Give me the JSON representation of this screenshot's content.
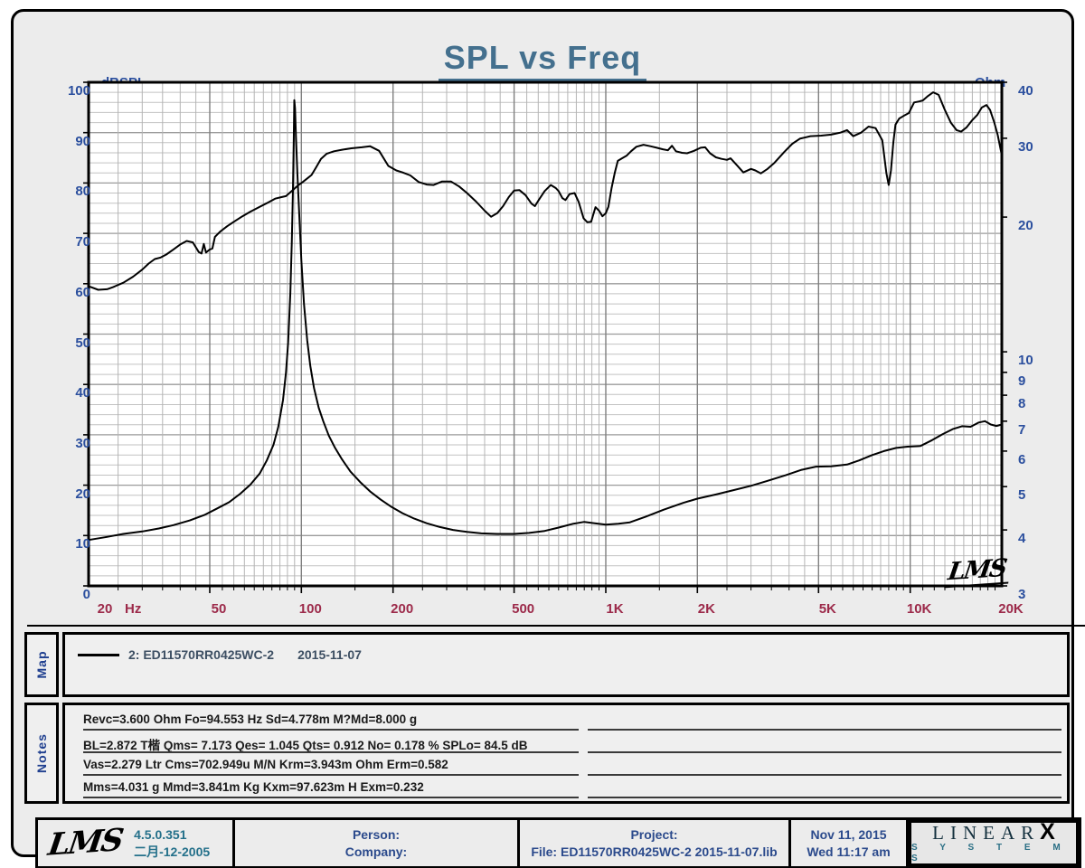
{
  "title": "SPL vs Freq",
  "chart": {
    "left_axis_label": "dBSPL",
    "right_axis_label": "Ohm",
    "x_unit_label": "Hz",
    "left_ticks": [
      100,
      90,
      80,
      70,
      60,
      50,
      40,
      30,
      20,
      10,
      0
    ],
    "right_ticks": [
      40,
      30,
      20,
      10,
      9,
      8,
      7,
      6,
      5,
      4,
      3
    ],
    "x_ticks": [
      {
        "f": 20,
        "label": "20"
      },
      {
        "f": 50,
        "label": "50"
      },
      {
        "f": 100,
        "label": "100"
      },
      {
        "f": 200,
        "label": "200"
      },
      {
        "f": 500,
        "label": "500"
      },
      {
        "f": 1000,
        "label": "1K"
      },
      {
        "f": 2000,
        "label": "2K"
      },
      {
        "f": 5000,
        "label": "5K"
      },
      {
        "f": 10000,
        "label": "10K"
      },
      {
        "f": 20000,
        "label": "20K"
      }
    ],
    "watermark": "LMS",
    "colors": {
      "title": "#44708e",
      "y_tick": "#2b4f9e",
      "x_tick": "#9c2a4a",
      "curve": "#000000",
      "grid_minor": "#b4b4b4",
      "grid_major": "#7f7f7f"
    }
  },
  "chart_data": {
    "type": "line",
    "title": "SPL vs Freq",
    "x_scale": "log",
    "x_range": [
      20,
      20000
    ],
    "left_axis": {
      "label": "dBSPL",
      "scale": "linear",
      "range": [
        0,
        100
      ]
    },
    "right_axis": {
      "label": "Ohm",
      "scale": "log",
      "range": [
        3,
        40
      ]
    },
    "series": [
      {
        "name": "SPL (dBSPL)",
        "axis": "left",
        "points": [
          [
            20,
            59.5
          ],
          [
            21.5,
            58.8
          ],
          [
            23,
            58.9
          ],
          [
            24,
            59.3
          ],
          [
            26,
            60.2
          ],
          [
            28,
            61.4
          ],
          [
            30,
            62.8
          ],
          [
            31.5,
            64.0
          ],
          [
            33,
            64.9
          ],
          [
            34.5,
            65.2
          ],
          [
            36,
            65.8
          ],
          [
            38,
            66.8
          ],
          [
            40,
            67.8
          ],
          [
            42,
            68.5
          ],
          [
            44,
            68.2
          ],
          [
            46,
            66.3
          ],
          [
            47,
            66.0
          ],
          [
            47.8,
            67.9
          ],
          [
            48.6,
            66.2
          ],
          [
            50,
            66.8
          ],
          [
            51,
            67.0
          ],
          [
            52,
            69.3
          ],
          [
            54,
            70.3
          ],
          [
            57,
            71.4
          ],
          [
            60,
            72.3
          ],
          [
            64,
            73.4
          ],
          [
            68,
            74.3
          ],
          [
            72,
            75.1
          ],
          [
            77,
            76.0
          ],
          [
            82,
            76.9
          ],
          [
            86,
            77.2
          ],
          [
            89,
            77.4
          ],
          [
            93,
            78.4
          ],
          [
            97,
            79.4
          ],
          [
            101,
            80.2
          ],
          [
            105,
            81.0
          ],
          [
            108,
            81.6
          ],
          [
            112,
            83.2
          ],
          [
            116,
            84.8
          ],
          [
            121,
            85.8
          ],
          [
            128,
            86.3
          ],
          [
            136,
            86.6
          ],
          [
            146,
            86.9
          ],
          [
            158,
            87.1
          ],
          [
            168,
            87.3
          ],
          [
            180,
            86.4
          ],
          [
            193,
            83.4
          ],
          [
            205,
            82.5
          ],
          [
            215,
            82.1
          ],
          [
            228,
            81.5
          ],
          [
            243,
            80.2
          ],
          [
            258,
            79.7
          ],
          [
            272,
            79.6
          ],
          [
            290,
            80.3
          ],
          [
            310,
            80.3
          ],
          [
            330,
            79.3
          ],
          [
            350,
            78.0
          ],
          [
            375,
            76.3
          ],
          [
            400,
            74.5
          ],
          [
            420,
            73.3
          ],
          [
            440,
            74.0
          ],
          [
            460,
            75.4
          ],
          [
            480,
            77.2
          ],
          [
            500,
            78.5
          ],
          [
            520,
            78.6
          ],
          [
            545,
            77.6
          ],
          [
            570,
            75.9
          ],
          [
            585,
            75.4
          ],
          [
            605,
            76.8
          ],
          [
            630,
            78.4
          ],
          [
            660,
            79.6
          ],
          [
            685,
            79.0
          ],
          [
            700,
            78.4
          ],
          [
            720,
            77.0
          ],
          [
            737,
            76.6
          ],
          [
            760,
            77.8
          ],
          [
            790,
            78.0
          ],
          [
            815,
            76.2
          ],
          [
            845,
            73.0
          ],
          [
            870,
            72.2
          ],
          [
            895,
            72.3
          ],
          [
            925,
            75.2
          ],
          [
            950,
            74.5
          ],
          [
            975,
            73.4
          ],
          [
            1000,
            74.0
          ],
          [
            1020,
            75.3
          ],
          [
            1045,
            79.0
          ],
          [
            1070,
            82.0
          ],
          [
            1095,
            84.4
          ],
          [
            1130,
            84.9
          ],
          [
            1170,
            85.4
          ],
          [
            1210,
            86.3
          ],
          [
            1260,
            87.2
          ],
          [
            1330,
            87.6
          ],
          [
            1400,
            87.3
          ],
          [
            1470,
            87.0
          ],
          [
            1540,
            86.7
          ],
          [
            1600,
            86.5
          ],
          [
            1650,
            87.4
          ],
          [
            1700,
            86.3
          ],
          [
            1780,
            86.0
          ],
          [
            1850,
            85.9
          ],
          [
            1950,
            86.4
          ],
          [
            2050,
            87.0
          ],
          [
            2120,
            87.1
          ],
          [
            2200,
            85.9
          ],
          [
            2300,
            85.1
          ],
          [
            2400,
            84.8
          ],
          [
            2500,
            84.6
          ],
          [
            2570,
            84.9
          ],
          [
            2700,
            83.5
          ],
          [
            2830,
            82.1
          ],
          [
            3000,
            82.8
          ],
          [
            3100,
            82.5
          ],
          [
            3230,
            81.9
          ],
          [
            3400,
            82.8
          ],
          [
            3580,
            84.0
          ],
          [
            3860,
            86.2
          ],
          [
            4100,
            87.8
          ],
          [
            4340,
            88.8
          ],
          [
            4700,
            89.3
          ],
          [
            5100,
            89.4
          ],
          [
            5500,
            89.6
          ],
          [
            5900,
            90.0
          ],
          [
            6200,
            90.5
          ],
          [
            6500,
            89.3
          ],
          [
            6900,
            90.0
          ],
          [
            7300,
            91.2
          ],
          [
            7700,
            90.9
          ],
          [
            8100,
            88.5
          ],
          [
            8350,
            82.0
          ],
          [
            8500,
            79.6
          ],
          [
            8650,
            82.5
          ],
          [
            8800,
            88.0
          ],
          [
            8950,
            91.6
          ],
          [
            9200,
            92.8
          ],
          [
            9500,
            93.3
          ],
          [
            9900,
            93.9
          ],
          [
            10300,
            96.0
          ],
          [
            10700,
            96.2
          ],
          [
            11000,
            96.4
          ],
          [
            11400,
            97.2
          ],
          [
            11900,
            98.0
          ],
          [
            12400,
            97.5
          ],
          [
            13000,
            94.5
          ],
          [
            13600,
            92.0
          ],
          [
            14200,
            90.5
          ],
          [
            14700,
            90.2
          ],
          [
            15300,
            91.0
          ],
          [
            16000,
            92.5
          ],
          [
            16600,
            93.5
          ],
          [
            17200,
            95.0
          ],
          [
            17800,
            95.5
          ],
          [
            18300,
            94.5
          ],
          [
            18900,
            92.0
          ],
          [
            19400,
            89.5
          ],
          [
            20000,
            85.5
          ]
        ]
      },
      {
        "name": "Impedance (Ohm)",
        "axis": "right",
        "points": [
          [
            20,
            3.8
          ],
          [
            23,
            3.86
          ],
          [
            26,
            3.92
          ],
          [
            30,
            3.97
          ],
          [
            34,
            4.03
          ],
          [
            38,
            4.1
          ],
          [
            43,
            4.2
          ],
          [
            48,
            4.32
          ],
          [
            53,
            4.47
          ],
          [
            58,
            4.62
          ],
          [
            63,
            4.82
          ],
          [
            68,
            5.05
          ],
          [
            73,
            5.35
          ],
          [
            77,
            5.72
          ],
          [
            81,
            6.2
          ],
          [
            84,
            6.8
          ],
          [
            87,
            7.8
          ],
          [
            89,
            9.0
          ],
          [
            90.5,
            10.5
          ],
          [
            92,
            13.5
          ],
          [
            93,
            17.5
          ],
          [
            93.8,
            23
          ],
          [
            94.4,
            30
          ],
          [
            94.8,
            36.5
          ],
          [
            95.3,
            35
          ],
          [
            96,
            30
          ],
          [
            97,
            25
          ],
          [
            98.5,
            20
          ],
          [
            100,
            16
          ],
          [
            102,
            12.8
          ],
          [
            104.5,
            10.6
          ],
          [
            107,
            9.3
          ],
          [
            110,
            8.3
          ],
          [
            114,
            7.5
          ],
          [
            118,
            7.0
          ],
          [
            123,
            6.5
          ],
          [
            129,
            6.1
          ],
          [
            136,
            5.75
          ],
          [
            145,
            5.4
          ],
          [
            156,
            5.12
          ],
          [
            168,
            4.88
          ],
          [
            182,
            4.68
          ],
          [
            198,
            4.5
          ],
          [
            215,
            4.36
          ],
          [
            235,
            4.24
          ],
          [
            258,
            4.14
          ],
          [
            285,
            4.06
          ],
          [
            315,
            4.0
          ],
          [
            350,
            3.96
          ],
          [
            390,
            3.93
          ],
          [
            440,
            3.92
          ],
          [
            500,
            3.92
          ],
          [
            560,
            3.94
          ],
          [
            630,
            3.98
          ],
          [
            700,
            4.05
          ],
          [
            780,
            4.13
          ],
          [
            850,
            4.17
          ],
          [
            920,
            4.14
          ],
          [
            1000,
            4.11
          ],
          [
            1100,
            4.13
          ],
          [
            1200,
            4.16
          ],
          [
            1350,
            4.28
          ],
          [
            1550,
            4.44
          ],
          [
            1800,
            4.6
          ],
          [
            2000,
            4.7
          ],
          [
            2300,
            4.8
          ],
          [
            2600,
            4.9
          ],
          [
            3000,
            5.02
          ],
          [
            3400,
            5.15
          ],
          [
            3900,
            5.3
          ],
          [
            4400,
            5.45
          ],
          [
            4900,
            5.54
          ],
          [
            5500,
            5.55
          ],
          [
            6200,
            5.6
          ],
          [
            6800,
            5.72
          ],
          [
            7500,
            5.88
          ],
          [
            8200,
            6.0
          ],
          [
            9000,
            6.1
          ],
          [
            9800,
            6.14
          ],
          [
            10800,
            6.16
          ],
          [
            11800,
            6.35
          ],
          [
            12800,
            6.55
          ],
          [
            13800,
            6.72
          ],
          [
            14800,
            6.82
          ],
          [
            15800,
            6.8
          ],
          [
            16800,
            6.95
          ],
          [
            17600,
            7.0
          ],
          [
            18400,
            6.88
          ],
          [
            19200,
            6.83
          ],
          [
            20000,
            6.88
          ]
        ]
      }
    ]
  },
  "map": {
    "label": "Map",
    "legend_name": "2: ED11570RR0425WC-2",
    "legend_date": "2015-11-07"
  },
  "notes": {
    "label": "Notes",
    "lines": [
      "Revc=3.600 Ohm  Fo=94.553 Hz  Sd=4.778m M?Md=8.000 g",
      "BL=2.872 T楷  Qms= 7.173  Qes= 1.045  Qts= 0.912  No= 0.178 %  SPLo= 84.5 dB",
      "Vas=2.279 Ltr  Cms=702.949u M/N  Krm=3.943m Ohm  Erm=0.582",
      "Mms=4.031 g  Mmd=3.841m Kg  Kxm=97.623m H  Exm=0.232"
    ],
    "empty_right_lines": 4
  },
  "footer": {
    "lms_logo": "LMS",
    "version": "4.5.0.351",
    "version_date": "二月-12-2005",
    "person_label": "Person:",
    "company_label": "Company:",
    "project_label": "Project:",
    "file_label": "File: ED11570RR0425WC-2  2015-11-07.lib",
    "date": "Nov 11, 2015",
    "time": "Wed 11:17 am",
    "brand": {
      "top": "LINEAR",
      "x": "X",
      "bottom": "S Y S T E M S"
    }
  }
}
